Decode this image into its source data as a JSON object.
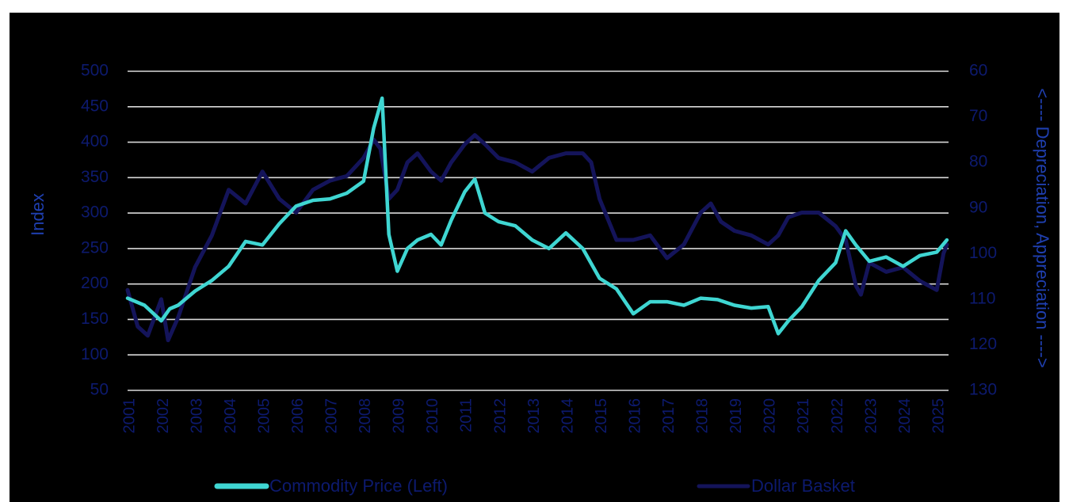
{
  "chart_data": {
    "type": "line",
    "title": "",
    "ylabel_left": "Index",
    "ylabel_right": "<---- Depreciation, Appreciation ---->",
    "ylim_left": [
      50,
      500
    ],
    "yticks_left": [
      "500",
      "450",
      "400",
      "350",
      "300",
      "250",
      "200",
      "150",
      "100",
      "50"
    ],
    "ylim_right": [
      60,
      130
    ],
    "right_axis_inverted": true,
    "yticks_right": [
      "60",
      "70",
      "80",
      "90",
      "100",
      "110",
      "120",
      "130"
    ],
    "x_categories": [
      "2001",
      "2002",
      "2003",
      "2004",
      "2005",
      "2006",
      "2007",
      "2008",
      "2009",
      "2010",
      "2011",
      "2012",
      "2013",
      "2014",
      "2015",
      "2016",
      "2017",
      "2018",
      "2019",
      "2020",
      "2021",
      "2022",
      "2023",
      "2024",
      "2025"
    ],
    "grid": true,
    "legend_position": "bottom",
    "colors": {
      "background": "#000000",
      "commodity": "#3fd6d2",
      "dollar": "#14145a",
      "text": "#0d1a6e",
      "axis_title": "#1f3fb0"
    },
    "series": [
      {
        "name": "Commodity Price (Left)",
        "axis": "left",
        "x": [
          2001.0,
          2001.5,
          2002.0,
          2002.25,
          2002.5,
          2003.0,
          2003.5,
          2004.0,
          2004.5,
          2005.0,
          2005.5,
          2006.0,
          2006.5,
          2007.0,
          2007.5,
          2008.0,
          2008.3,
          2008.55,
          2008.75,
          2009.0,
          2009.3,
          2009.6,
          2010.0,
          2010.3,
          2010.6,
          2011.0,
          2011.3,
          2011.6,
          2012.0,
          2012.5,
          2013.0,
          2013.5,
          2014.0,
          2014.5,
          2015.0,
          2015.5,
          2016.0,
          2016.5,
          2017.0,
          2017.5,
          2018.0,
          2018.5,
          2019.0,
          2019.5,
          2020.0,
          2020.3,
          2020.6,
          2021.0,
          2021.5,
          2022.0,
          2022.3,
          2022.6,
          2023.0,
          2023.5,
          2024.0,
          2024.5,
          2025.0,
          2025.3
        ],
        "values": [
          180,
          170,
          148,
          165,
          170,
          190,
          205,
          225,
          260,
          255,
          285,
          310,
          318,
          320,
          328,
          345,
          420,
          462,
          270,
          218,
          250,
          262,
          270,
          255,
          290,
          330,
          348,
          300,
          288,
          282,
          262,
          250,
          272,
          250,
          208,
          193,
          158,
          175,
          175,
          170,
          180,
          178,
          170,
          166,
          168,
          130,
          148,
          168,
          205,
          230,
          275,
          255,
          232,
          238,
          225,
          240,
          245,
          262
        ]
      },
      {
        "name": "Dollar Basket",
        "axis": "right",
        "x": [
          2001.0,
          2001.3,
          2001.6,
          2002.0,
          2002.2,
          2002.5,
          2003.0,
          2003.5,
          2004.0,
          2004.5,
          2005.0,
          2005.5,
          2006.0,
          2006.5,
          2007.0,
          2007.5,
          2008.0,
          2008.3,
          2008.5,
          2008.75,
          2009.0,
          2009.3,
          2009.6,
          2010.0,
          2010.3,
          2010.6,
          2011.0,
          2011.3,
          2011.6,
          2012.0,
          2012.5,
          2013.0,
          2013.5,
          2014.0,
          2014.5,
          2014.75,
          2015.0,
          2015.5,
          2016.0,
          2016.5,
          2017.0,
          2017.5,
          2018.0,
          2018.3,
          2018.6,
          2019.0,
          2019.5,
          2020.0,
          2020.3,
          2020.6,
          2021.0,
          2021.5,
          2022.0,
          2022.3,
          2022.6,
          2022.75,
          2023.0,
          2023.5,
          2024.0,
          2024.5,
          2025.0,
          2025.2,
          2025.3
        ],
        "values": [
          108,
          116,
          118,
          110,
          119,
          114,
          103,
          96,
          86,
          89,
          82,
          88,
          91,
          86,
          84,
          83,
          79,
          75,
          77,
          88,
          86,
          80,
          78,
          82,
          84,
          80,
          76,
          74,
          76,
          79,
          80,
          82,
          79,
          78,
          78,
          80,
          88,
          97,
          97,
          96,
          101,
          98,
          91,
          89,
          93,
          95,
          96,
          98,
          96,
          92,
          91,
          91,
          94,
          97,
          107,
          109,
          102,
          104,
          103,
          106,
          108,
          100,
          98
        ]
      }
    ]
  }
}
